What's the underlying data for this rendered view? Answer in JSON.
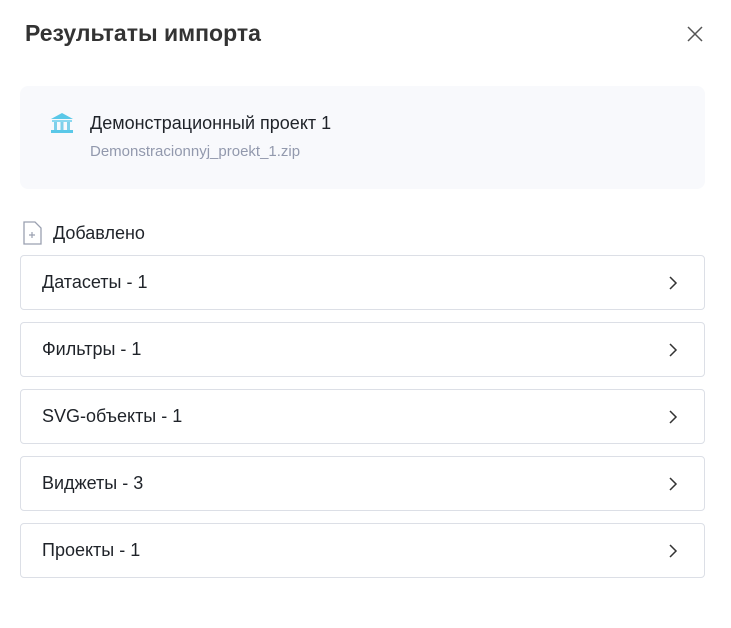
{
  "title": "Результаты импорта",
  "project": {
    "name": "Демонстрационный проект 1",
    "file": "Demonstracionnyj_proekt_1.zip"
  },
  "section": "Добавлено",
  "rows": [
    {
      "label": "Датасеты - 1"
    },
    {
      "label": "Фильтры - 1"
    },
    {
      "label": "SVG-объекты - 1"
    },
    {
      "label": "Виджеты - 3"
    },
    {
      "label": "Проекты - 1"
    }
  ]
}
